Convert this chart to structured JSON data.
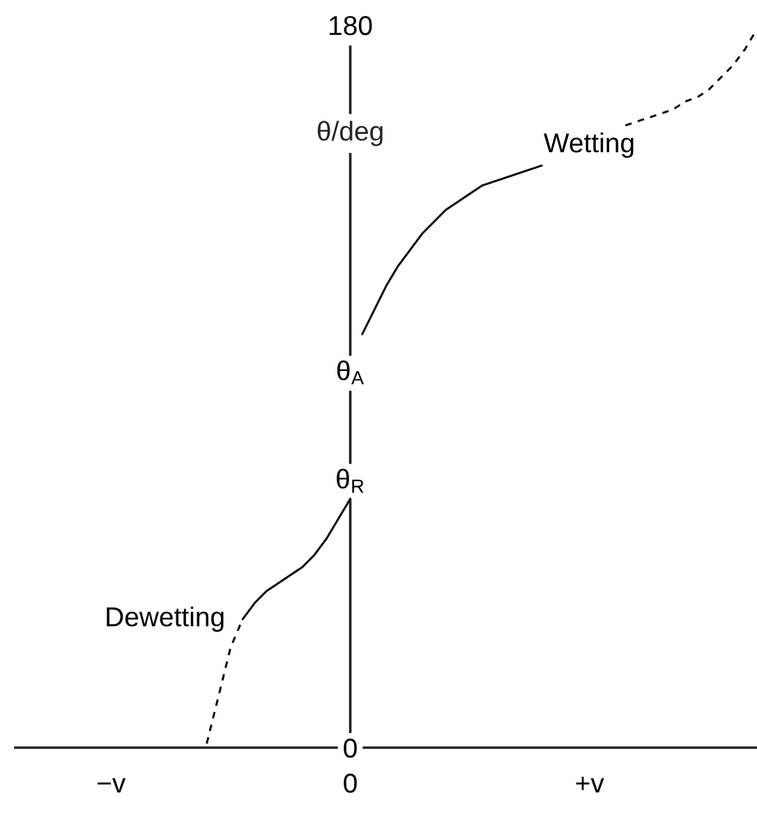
{
  "chart_data": {
    "type": "line",
    "ylabel": "θ/deg",
    "categories": [
      null,
      null,
      null,
      null,
      null,
      null,
      null,
      null,
      "−v",
      null,
      null,
      null,
      null,
      null,
      null,
      null,
      null,
      null,
      null,
      null,
      null,
      null,
      null,
      null,
      null,
      null,
      null,
      null,
      "0",
      null,
      null,
      null,
      null,
      null,
      null,
      null,
      null,
      null,
      null,
      null,
      null,
      null,
      null,
      null,
      null,
      null,
      null,
      null,
      "+v",
      null,
      null,
      null,
      null,
      null,
      null,
      null,
      null,
      null,
      null,
      null,
      null,
      null,
      null
    ],
    "ylim": [
      0,
      180
    ],
    "yticks": [
      0,
      {
        "value": 67,
        "label": "θ$_{R}$"
      },
      {
        "value": 94,
        "label": "θ$_{A}$"
      },
      180
    ],
    "series": [
      {
        "name": "Wetting",
        "color": "#000000",
        "line_style": "solid",
        "values": [
          null,
          null,
          null,
          null,
          null,
          null,
          null,
          null,
          null,
          null,
          null,
          null,
          null,
          null,
          null,
          null,
          null,
          null,
          null,
          null,
          null,
          null,
          null,
          null,
          null,
          null,
          null,
          null,
          null,
          103,
          109,
          115,
          120,
          124,
          128,
          131,
          134,
          136,
          138,
          140,
          141,
          142,
          143,
          144,
          145,
          null,
          null,
          null,
          null,
          null,
          null,
          null,
          null,
          null,
          null,
          null,
          null,
          null,
          null,
          null,
          null,
          null,
          null
        ]
      },
      {
        "color": "#000000",
        "line_style": "dashed",
        "values": [
          null,
          null,
          null,
          null,
          null,
          null,
          null,
          null,
          null,
          null,
          null,
          null,
          null,
          null,
          null,
          null,
          null,
          null,
          null,
          null,
          null,
          null,
          null,
          null,
          null,
          null,
          null,
          null,
          null,
          null,
          null,
          null,
          null,
          null,
          null,
          null,
          null,
          null,
          null,
          null,
          null,
          null,
          null,
          null,
          null,
          null,
          null,
          null,
          null,
          null,
          null,
          155,
          156,
          157,
          158,
          159,
          161,
          162,
          164,
          167,
          170,
          174,
          179
        ]
      },
      {
        "name": "Dewetting",
        "color": "#000000",
        "line_style": "solid",
        "values": [
          null,
          null,
          null,
          null,
          null,
          null,
          null,
          null,
          null,
          null,
          null,
          null,
          null,
          null,
          null,
          null,
          null,
          null,
          null,
          32,
          36,
          39,
          41,
          43,
          45,
          48,
          52,
          57,
          62,
          null,
          null,
          null,
          null,
          null,
          null,
          null,
          null,
          null,
          null,
          null,
          null,
          null,
          null,
          null,
          null,
          null,
          null,
          null,
          null,
          null,
          null,
          null,
          null,
          null,
          null,
          null,
          null,
          null,
          null,
          null,
          null,
          null,
          null
        ]
      },
      {
        "color": "#000000",
        "line_style": "dashed",
        "values": [
          null,
          null,
          null,
          null,
          null,
          null,
          null,
          null,
          null,
          null,
          null,
          null,
          null,
          null,
          null,
          null,
          1,
          13,
          25,
          32,
          null,
          null,
          null,
          null,
          null,
          null,
          null,
          null,
          null,
          null,
          null,
          null,
          null,
          null,
          null,
          null,
          null,
          null,
          null,
          null,
          null,
          null,
          null,
          null,
          null,
          null,
          null,
          null,
          null,
          null,
          null,
          null,
          null,
          null,
          null,
          null,
          null,
          null,
          null,
          null,
          null,
          null,
          null
        ]
      }
    ]
  }
}
